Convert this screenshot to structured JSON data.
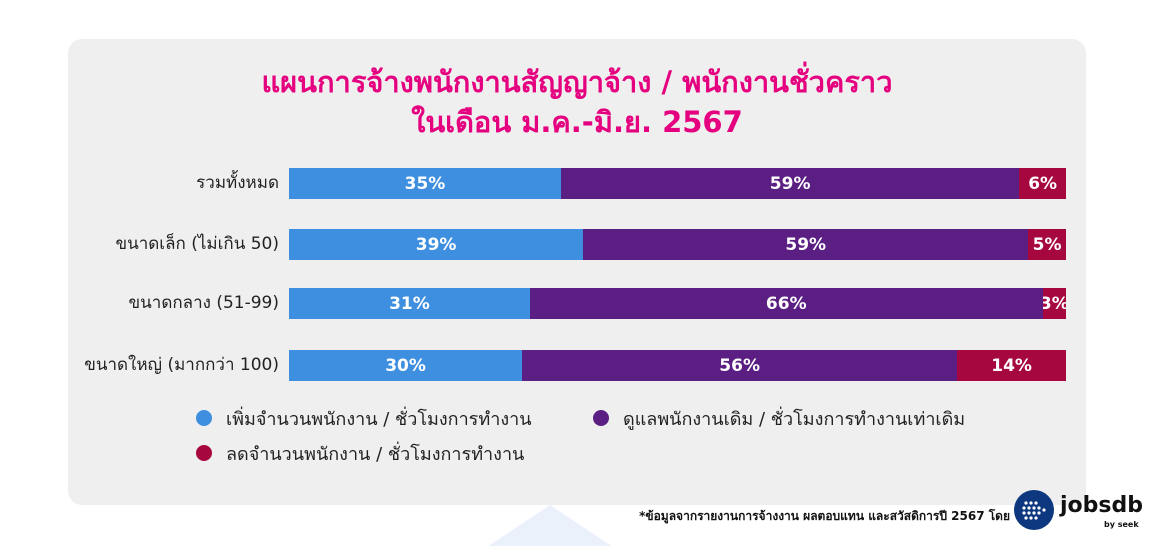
{
  "title": {
    "line1": "แผนการจ้างพนักงานสัญญาจ้าง / พนักงานชั่วคราว",
    "line2": "ในเดือน ม.ค.-มิ.ย. 2567"
  },
  "colors": {
    "title": "#e4007f",
    "increase": "#3e8fe0",
    "maintain": "#5b1f84",
    "decrease": "#a6073f",
    "panel": "#efefef"
  },
  "chart_data": {
    "type": "bar",
    "orientation": "horizontal",
    "stacked": true,
    "title": "แผนการจ้างพนักงานสัญญาจ้าง / พนักงานชั่วคราว ในเดือน ม.ค.-มิ.ย. 2567",
    "categories": [
      "รวมทั้งหมด",
      "ขนาดเล็ก (ไม่เกิน 50)",
      "ขนาดกลาง (51-99)",
      "ขนาดใหญ่ (มากกว่า 100)"
    ],
    "series": [
      {
        "name": "เพิ่มจำนวนพนักงาน / ชั่วโมงการทำงาน",
        "values": [
          35,
          39,
          31,
          30
        ],
        "color": "#3e8fe0"
      },
      {
        "name": "ดูแลพนักงานเดิม / ชั่วโมงการทำงานเท่าเดิม",
        "values": [
          59,
          59,
          66,
          56
        ],
        "color": "#5b1f84"
      },
      {
        "name": "ลดจำนวนพนักงาน / ชั่วโมงการทำงาน",
        "values": [
          6,
          5,
          3,
          14
        ],
        "color": "#a6073f"
      }
    ],
    "value_suffix": "%",
    "legend_position": "bottom",
    "grid": false
  },
  "footnote": "*ข้อมูลจากรายงานการจ้างงาน ผลตอบแทน และสวัสดิการปี 2567 โดย",
  "logo": {
    "word": "jobsdb",
    "sub": "by seek",
    "icon": "jobsdb-logo-icon"
  }
}
